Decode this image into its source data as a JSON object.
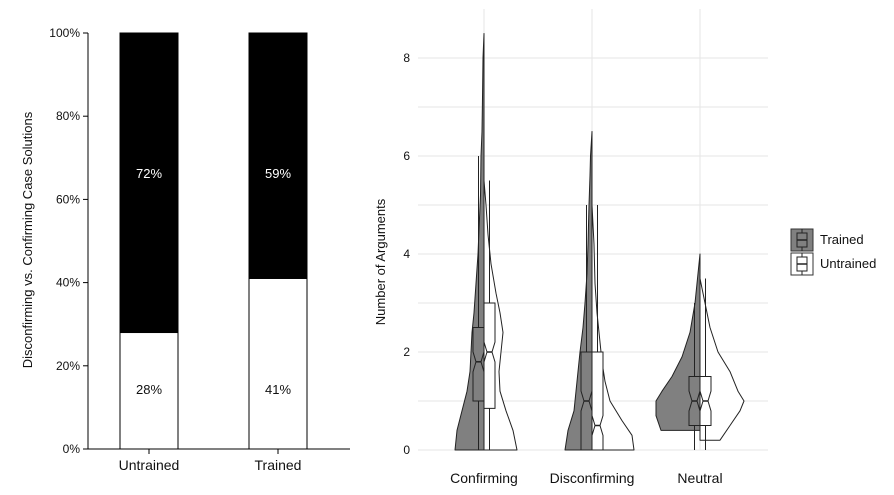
{
  "chart_data": [
    {
      "type": "bar",
      "subtype": "stacked-100",
      "ylabel": "Disconfirming vs. Confirming Case Solutions",
      "xlabel": "",
      "ylim": [
        0,
        100
      ],
      "yticks": [
        "0%",
        "20%",
        "40%",
        "60%",
        "80%",
        "100%"
      ],
      "ytick_values": [
        0,
        20,
        40,
        60,
        80,
        100
      ],
      "categories": [
        "Untrained",
        "Trained"
      ],
      "series": [
        {
          "name": "Disconfirming",
          "color": "#ffffff",
          "values": [
            28,
            41
          ],
          "labels": [
            "28%",
            "41%"
          ]
        },
        {
          "name": "Confirming",
          "color": "#000000",
          "values": [
            72,
            59
          ],
          "labels": [
            "72%",
            "59%"
          ]
        }
      ]
    },
    {
      "type": "violin",
      "subtype": "split-violin-with-notched-boxplot",
      "ylabel": "Number of Arguments",
      "xlabel": "",
      "ylim": [
        0,
        9
      ],
      "yticks": [
        "0",
        "2",
        "4",
        "6",
        "8"
      ],
      "ytick_values": [
        0,
        2,
        4,
        6,
        8
      ],
      "grid": true,
      "categories": [
        "Confirming",
        "Disconfirming",
        "Neutral"
      ],
      "legend": {
        "position": "right",
        "entries": [
          "Trained",
          "Untrained"
        ]
      },
      "series": [
        {
          "name": "Trained",
          "color": "#808080",
          "groups": [
            {
              "max": 8.5,
              "q1": 1.0,
              "median": 1.8,
              "q3": 2.5,
              "whisker_high": 6.0
            },
            {
              "max": 6.5,
              "q1": 0.0,
              "median": 1.0,
              "q3": 2.0,
              "whisker_high": 5.0
            },
            {
              "max": 4.0,
              "q1": 0.5,
              "median": 1.0,
              "q3": 1.5,
              "whisker_high": 3.0
            }
          ]
        },
        {
          "name": "Untrained",
          "color": "#ffffff",
          "groups": [
            {
              "max": 5.5,
              "q1": 0.85,
              "median": 2.0,
              "q3": 3.0,
              "whisker_high": 5.5
            },
            {
              "max": 5.0,
              "q1": 0.0,
              "median": 0.5,
              "q3": 2.0,
              "whisker_high": 5.0
            },
            {
              "max": 3.5,
              "q1": 0.5,
              "median": 1.0,
              "q3": 1.5,
              "whisker_high": 3.5
            }
          ]
        }
      ]
    }
  ]
}
